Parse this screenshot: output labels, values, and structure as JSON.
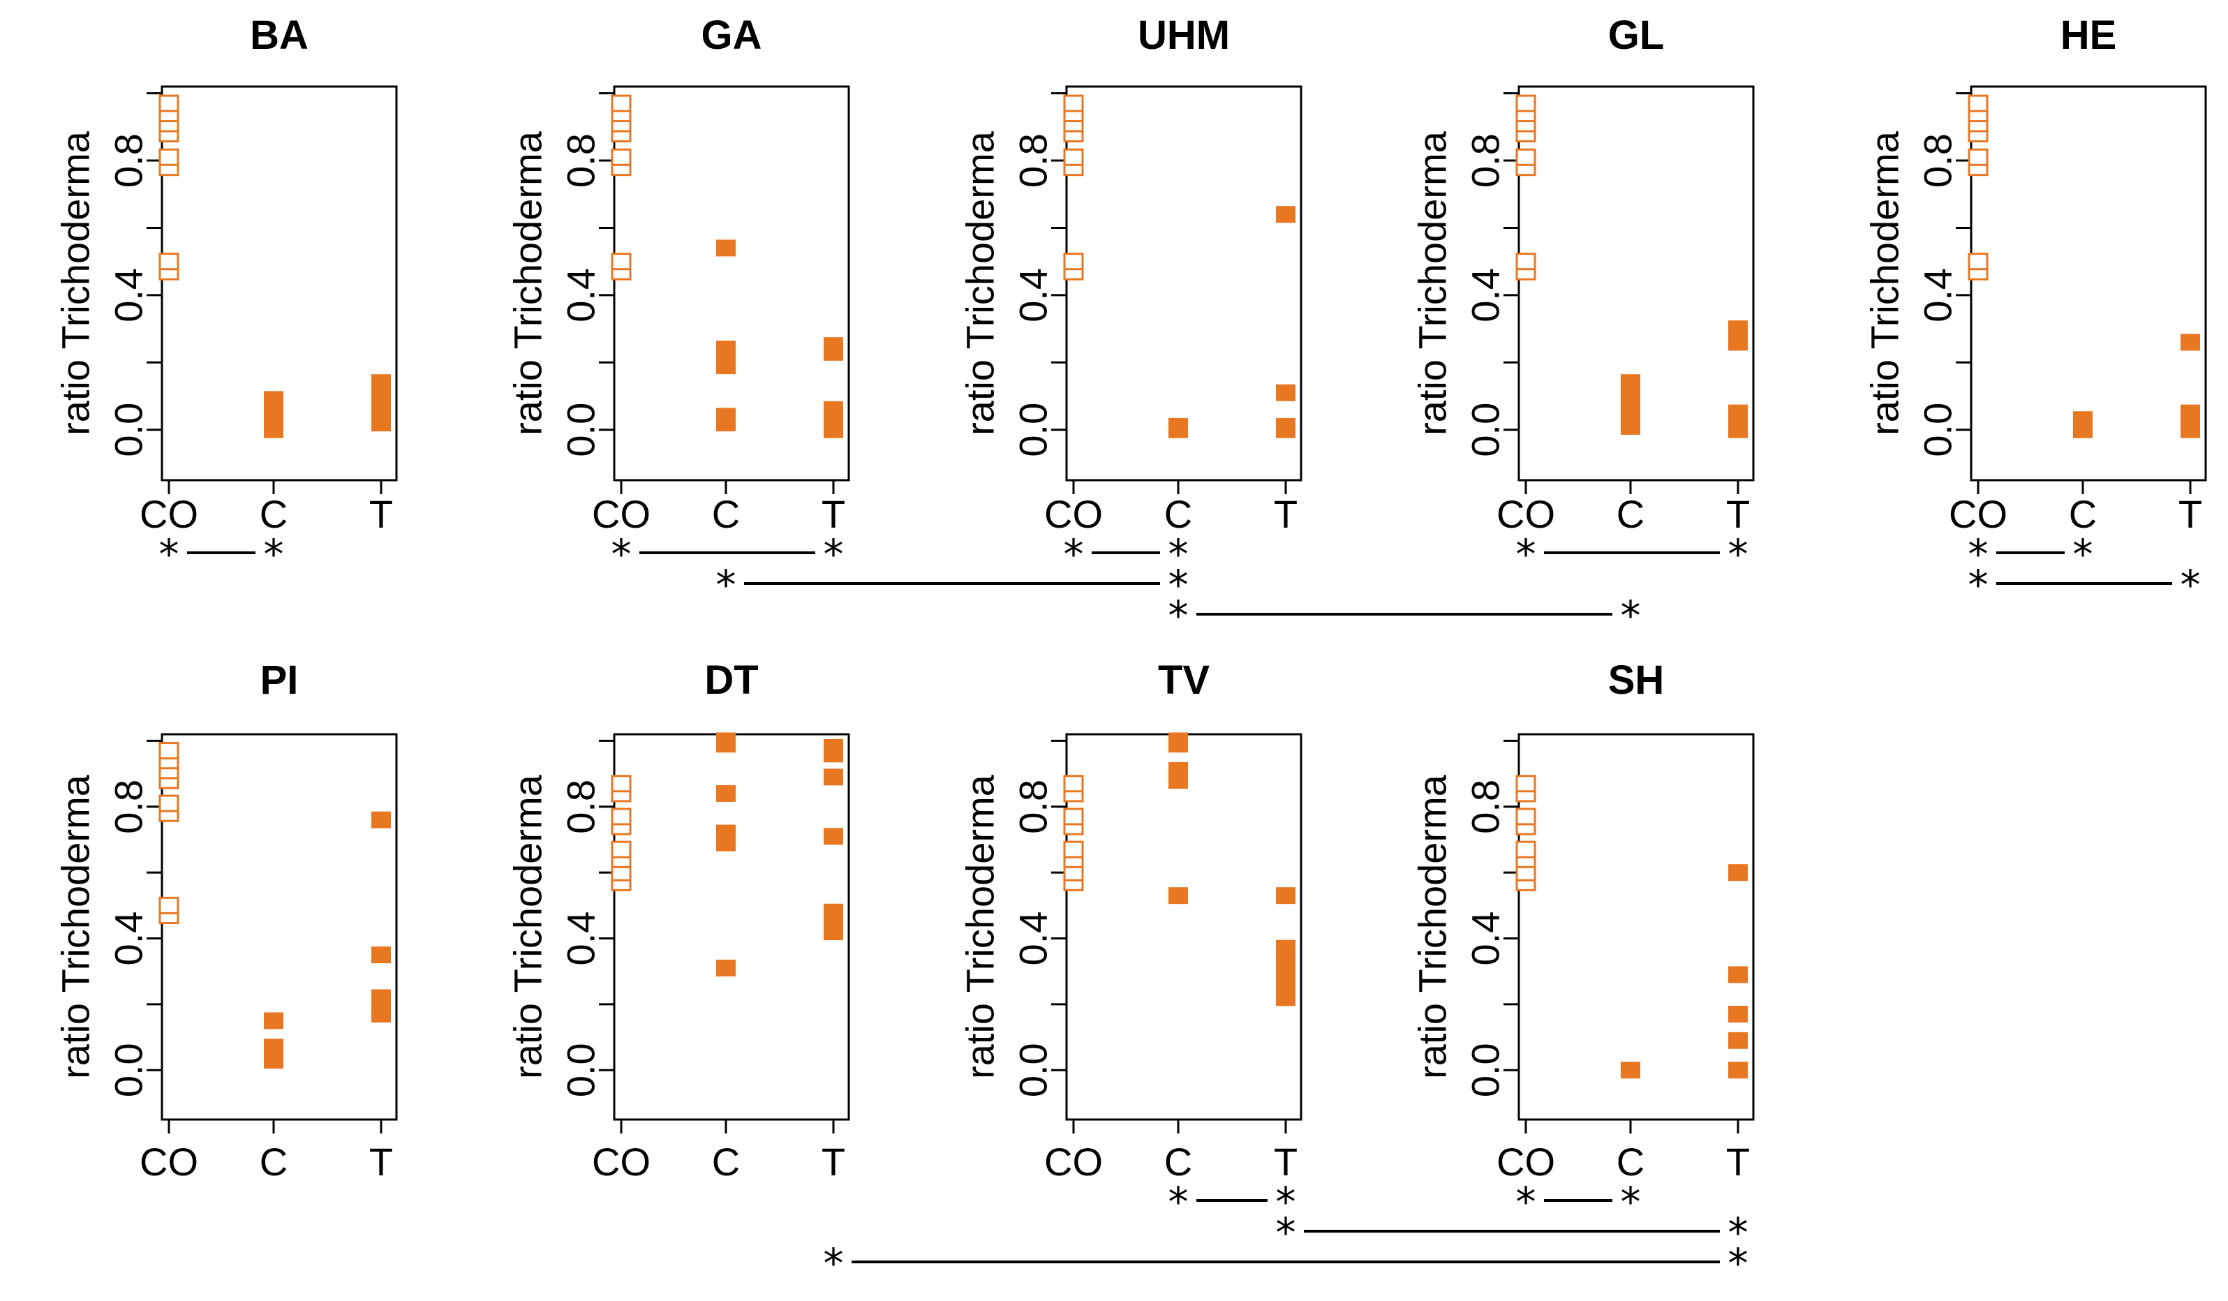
{
  "colors": {
    "marker": "#E87722",
    "axis": "#000000",
    "background": "#ffffff"
  },
  "chart_data": [
    {
      "type": "scatter",
      "title": "BA",
      "ylabel": "ratio Trichoderma",
      "categories": [
        "CO",
        "C",
        "T"
      ],
      "yticks": [
        "0.0",
        "0.4",
        "0.8"
      ],
      "ylim": [
        -0.15,
        1.02
      ],
      "points": {
        "CO": [
          0.47,
          0.5,
          0.78,
          0.81,
          0.88,
          0.91,
          0.94,
          0.97
        ],
        "C": [
          0.0,
          0.03,
          0.06,
          0.09
        ],
        "T": [
          0.02,
          0.06,
          0.1,
          0.14
        ]
      },
      "comparisons": [
        {
          "from": "CO",
          "to": "C",
          "row": 0
        }
      ]
    },
    {
      "type": "scatter",
      "title": "GA",
      "ylabel": "ratio Trichoderma",
      "categories": [
        "CO",
        "C",
        "T"
      ],
      "yticks": [
        "0.0",
        "0.4",
        "0.8"
      ],
      "ylim": [
        -0.15,
        1.02
      ],
      "points": {
        "CO": [
          0.47,
          0.5,
          0.78,
          0.81,
          0.88,
          0.91,
          0.94,
          0.97
        ],
        "C": [
          0.02,
          0.04,
          0.19,
          0.22,
          0.24,
          0.54
        ],
        "T": [
          0.0,
          0.03,
          0.06,
          0.23,
          0.25
        ]
      },
      "comparisons": [
        {
          "from": "CO",
          "to": "T",
          "row": 0
        }
      ]
    },
    {
      "type": "scatter",
      "title": "UHM",
      "ylabel": "ratio Trichoderma",
      "categories": [
        "CO",
        "C",
        "T"
      ],
      "yticks": [
        "0.0",
        "0.4",
        "0.8"
      ],
      "ylim": [
        -0.15,
        1.02
      ],
      "points": {
        "CO": [
          0.47,
          0.5,
          0.78,
          0.81,
          0.88,
          0.91,
          0.94,
          0.97
        ],
        "C": [
          0.0,
          0.01
        ],
        "T": [
          0.0,
          0.01,
          0.11,
          0.64
        ]
      },
      "comparisons": [
        {
          "from": "CO",
          "to": "C",
          "row": 0
        }
      ]
    },
    {
      "type": "scatter",
      "title": "GL",
      "ylabel": "ratio Trichoderma",
      "categories": [
        "CO",
        "C",
        "T"
      ],
      "yticks": [
        "0.0",
        "0.4",
        "0.8"
      ],
      "ylim": [
        -0.15,
        1.02
      ],
      "points": {
        "CO": [
          0.47,
          0.5,
          0.78,
          0.81,
          0.88,
          0.91,
          0.94,
          0.97
        ],
        "C": [
          0.01,
          0.04,
          0.08,
          0.11,
          0.14
        ],
        "T": [
          0.0,
          0.03,
          0.05,
          0.26,
          0.3
        ]
      },
      "comparisons": [
        {
          "from": "CO",
          "to": "T",
          "row": 0
        }
      ]
    },
    {
      "type": "scatter",
      "title": "HE",
      "ylabel": "ratio Trichoderma",
      "categories": [
        "CO",
        "C",
        "T"
      ],
      "yticks": [
        "0.0",
        "0.4",
        "0.8"
      ],
      "ylim": [
        -0.15,
        1.02
      ],
      "points": {
        "CO": [
          0.47,
          0.5,
          0.78,
          0.81,
          0.88,
          0.91,
          0.94,
          0.97
        ],
        "C": [
          0.0,
          0.03
        ],
        "T": [
          0.0,
          0.03,
          0.05,
          0.26
        ]
      },
      "comparisons": [
        {
          "from": "CO",
          "to": "C",
          "row": 0
        },
        {
          "from": "CO",
          "to": "T",
          "row": 1
        }
      ]
    },
    {
      "type": "scatter",
      "title": "PI",
      "ylabel": "ratio Trichoderma",
      "categories": [
        "CO",
        "C",
        "T"
      ],
      "yticks": [
        "0.0",
        "0.4",
        "0.8"
      ],
      "ylim": [
        -0.15,
        1.02
      ],
      "points": {
        "CO": [
          0.47,
          0.5,
          0.78,
          0.81,
          0.88,
          0.91,
          0.94,
          0.97
        ],
        "C": [
          0.03,
          0.07,
          0.15
        ],
        "T": [
          0.17,
          0.2,
          0.22,
          0.35,
          0.76
        ]
      },
      "comparisons": []
    },
    {
      "type": "scatter",
      "title": "DT",
      "ylabel": "ratio Trichoderma",
      "categories": [
        "CO",
        "C",
        "T"
      ],
      "yticks": [
        "0.0",
        "0.4",
        "0.8"
      ],
      "ylim": [
        -0.15,
        1.02
      ],
      "points": {
        "CO": [
          0.57,
          0.6,
          0.64,
          0.67,
          0.74,
          0.77,
          0.84,
          0.87
        ],
        "C": [
          0.31,
          0.69,
          0.72,
          0.84,
          0.99,
          1.0
        ],
        "T": [
          0.42,
          0.45,
          0.48,
          0.71,
          0.89,
          0.96,
          0.98
        ]
      },
      "comparisons": []
    },
    {
      "type": "scatter",
      "title": "TV",
      "ylabel": "ratio Trichoderma",
      "categories": [
        "CO",
        "C",
        "T"
      ],
      "yticks": [
        "0.0",
        "0.4",
        "0.8"
      ],
      "ylim": [
        -0.15,
        1.02
      ],
      "points": {
        "CO": [
          0.57,
          0.6,
          0.64,
          0.67,
          0.74,
          0.77,
          0.84,
          0.87
        ],
        "C": [
          0.53,
          0.88,
          0.91,
          0.99,
          1.0
        ],
        "T": [
          0.22,
          0.25,
          0.29,
          0.33,
          0.37,
          0.53
        ]
      },
      "comparisons": [
        {
          "from": "C",
          "to": "T",
          "row": 0
        }
      ]
    },
    {
      "type": "scatter",
      "title": "SH",
      "ylabel": "ratio Trichoderma",
      "categories": [
        "CO",
        "C",
        "T"
      ],
      "yticks": [
        "0.0",
        "0.4",
        "0.8"
      ],
      "ylim": [
        -0.15,
        1.02
      ],
      "points": {
        "CO": [
          0.57,
          0.6,
          0.64,
          0.67,
          0.74,
          0.77,
          0.84,
          0.87
        ],
        "C": [
          0.0
        ],
        "T": [
          0.0,
          0.09,
          0.17,
          0.29,
          0.6
        ]
      },
      "comparisons": [
        {
          "from": "CO",
          "to": "C",
          "row": 0
        }
      ]
    }
  ],
  "cross_comparisons": [
    {
      "row": "top",
      "from_panel": "GA",
      "from_cat": "C",
      "to_panel": "UHM",
      "to_cat": "C",
      "level": 1
    },
    {
      "row": "top",
      "from_panel": "UHM",
      "from_cat": "C",
      "to_panel": "GL",
      "to_cat": "C",
      "level": 2
    },
    {
      "row": "bottom",
      "from_panel": "TV",
      "from_cat": "T",
      "to_panel": "SH",
      "to_cat": "T",
      "level": 1
    },
    {
      "row": "bottom",
      "from_panel": "DT",
      "from_cat": "T",
      "to_panel": "SH",
      "to_cat": "T",
      "level": 2
    }
  ],
  "significance_symbol": "*"
}
